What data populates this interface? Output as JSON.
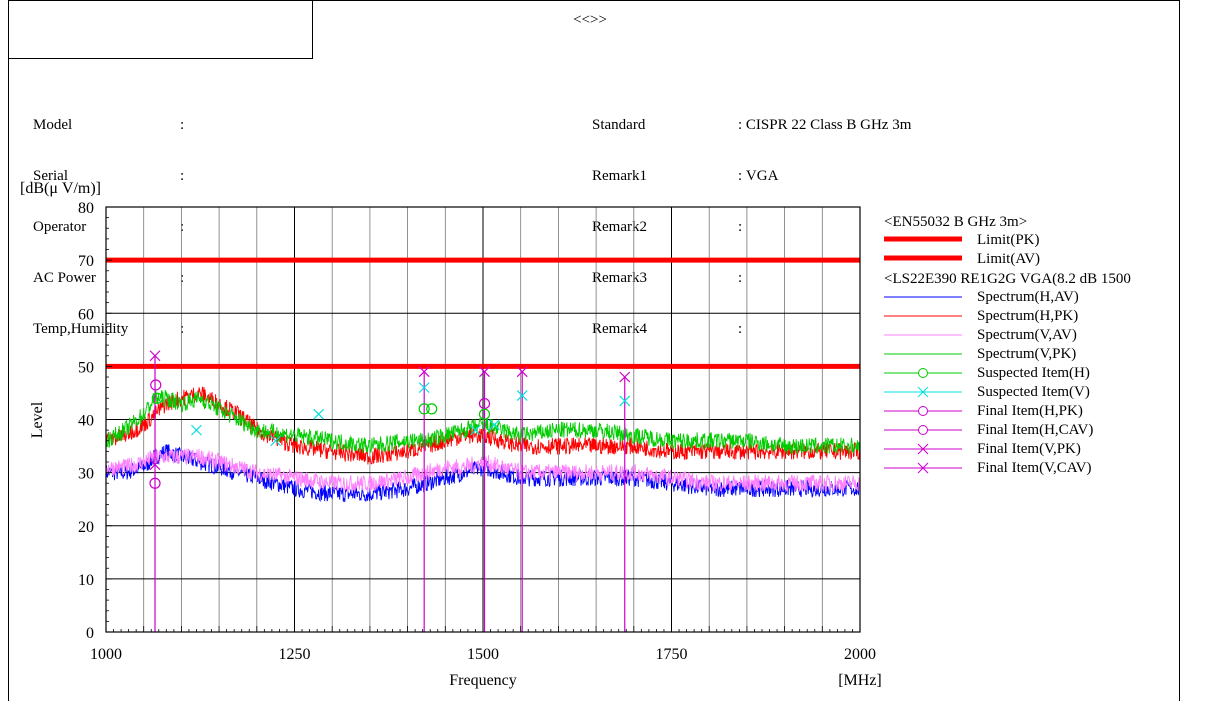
{
  "header": {
    "title": "<<>>"
  },
  "info_left": [
    {
      "key": "Model",
      "sep": ":",
      "value": ""
    },
    {
      "key": "Serial",
      "sep": ":",
      "value": ""
    },
    {
      "key": "Operator",
      "sep": ":",
      "value": ""
    },
    {
      "key": "AC Power",
      "sep": ":",
      "value": ""
    },
    {
      "key": "Temp,Humidity",
      "sep": ":",
      "value": ""
    }
  ],
  "info_right": [
    {
      "key": "Standard",
      "sep": ":",
      "value": "CISPR 22 Class B GHz 3m"
    },
    {
      "key": "Remark1",
      "sep": ":",
      "value": "VGA"
    },
    {
      "key": "Remark2",
      "sep": ":",
      "value": ""
    },
    {
      "key": "Remark3",
      "sep": ":",
      "value": ""
    },
    {
      "key": "Remark4",
      "sep": ":",
      "value": ""
    }
  ],
  "chart_data": {
    "type": "line",
    "xlabel": "Frequency",
    "xunit": "[MHz]",
    "ylabel": "Level",
    "yunit": "[dB(μ V/m)]",
    "xlim": [
      1000,
      2000
    ],
    "ylim": [
      0,
      80
    ],
    "xticks": [
      1000,
      1250,
      1500,
      1750,
      2000
    ],
    "yticks": [
      0,
      10,
      20,
      30,
      40,
      50,
      60,
      70,
      80
    ],
    "grid": true,
    "limits": [
      {
        "name": "Limit(PK)",
        "value": 70,
        "color": "#ff0000"
      },
      {
        "name": "Limit(AV)",
        "value": 50,
        "color": "#ff0000"
      }
    ],
    "legend_groups": [
      {
        "title": "<EN55032 B GHz 3m>",
        "entries": [
          {
            "name": "Limit(PK)",
            "color": "#ff0000",
            "style": "thick"
          },
          {
            "name": "Limit(AV)",
            "color": "#ff0000",
            "style": "thick"
          }
        ]
      },
      {
        "title": "<LS22E390 RE1G2G VGA(8.2 dB 1500",
        "entries": [
          {
            "name": "Spectrum(H,AV)",
            "color": "#0000ff",
            "style": "line"
          },
          {
            "name": "Spectrum(H,PK)",
            "color": "#ff0000",
            "style": "line"
          },
          {
            "name": "Spectrum(V,AV)",
            "color": "#ff80ff",
            "style": "line"
          },
          {
            "name": "Spectrum(V,PK)",
            "color": "#00cc00",
            "style": "line"
          },
          {
            "name": "Suspected Item(H)",
            "color": "#00cc00",
            "style": "circle"
          },
          {
            "name": "Suspected Item(V)",
            "color": "#00e0e0",
            "style": "cross"
          },
          {
            "name": "Final Item(H,PK)",
            "color": "#cc00cc",
            "style": "circle"
          },
          {
            "name": "Final Item(H,CAV)",
            "color": "#cc00cc",
            "style": "circle"
          },
          {
            "name": "Final Item(V,PK)",
            "color": "#cc00cc",
            "style": "cross"
          },
          {
            "name": "Final Item(V,CAV)",
            "color": "#cc00cc",
            "style": "cross"
          }
        ]
      }
    ],
    "series": [
      {
        "name": "Spectrum(H,AV)",
        "color": "#0000ff",
        "x": [
          1000,
          1025,
          1050,
          1065,
          1080,
          1100,
          1125,
          1150,
          1175,
          1200,
          1250,
          1300,
          1350,
          1400,
          1425,
          1450,
          1475,
          1500,
          1525,
          1550,
          1600,
          1650,
          1700,
          1750,
          1800,
          1850,
          1900,
          1950,
          2000
        ],
        "y": [
          30,
          30,
          31,
          33,
          34,
          33,
          32,
          31,
          30,
          29,
          27,
          26,
          26,
          27,
          28,
          29,
          30,
          31,
          30,
          29,
          29,
          29,
          29,
          28,
          27,
          27,
          27,
          27,
          27
        ]
      },
      {
        "name": "Spectrum(V,AV)",
        "color": "#ff80ff",
        "x": [
          1000,
          1025,
          1050,
          1065,
          1080,
          1100,
          1125,
          1150,
          1175,
          1200,
          1250,
          1300,
          1350,
          1400,
          1425,
          1450,
          1475,
          1500,
          1525,
          1550,
          1600,
          1650,
          1700,
          1750,
          1800,
          1850,
          1900,
          1950,
          2000
        ],
        "y": [
          31,
          31,
          32,
          33,
          33,
          33,
          33,
          32,
          31,
          30,
          29,
          28,
          28,
          29,
          30,
          31,
          31,
          32,
          31,
          30,
          30,
          30,
          30,
          29,
          28,
          28,
          28,
          28,
          28
        ]
      },
      {
        "name": "Spectrum(H,PK)",
        "color": "#ff0000",
        "x": [
          1000,
          1025,
          1050,
          1065,
          1080,
          1100,
          1125,
          1150,
          1175,
          1200,
          1250,
          1300,
          1350,
          1400,
          1425,
          1450,
          1475,
          1500,
          1525,
          1550,
          1600,
          1650,
          1700,
          1750,
          1800,
          1850,
          1900,
          1950,
          2000
        ],
        "y": [
          36,
          37,
          39,
          41,
          43,
          44,
          45,
          43,
          41,
          38,
          35,
          34,
          33,
          34,
          35,
          36,
          37,
          37,
          36,
          35,
          35,
          35,
          35,
          34,
          34,
          34,
          34,
          34,
          34
        ]
      },
      {
        "name": "Spectrum(V,PK)",
        "color": "#00cc00",
        "x": [
          1000,
          1025,
          1050,
          1065,
          1080,
          1100,
          1125,
          1150,
          1175,
          1200,
          1250,
          1300,
          1350,
          1400,
          1425,
          1450,
          1475,
          1500,
          1525,
          1550,
          1600,
          1650,
          1700,
          1750,
          1800,
          1850,
          1900,
          1950,
          2000
        ],
        "y": [
          36,
          38,
          41,
          44,
          44,
          43,
          44,
          42,
          40,
          38,
          37,
          36,
          35,
          36,
          36,
          37,
          38,
          39,
          38,
          37,
          38,
          38,
          37,
          36,
          36,
          36,
          35,
          35,
          35
        ]
      }
    ],
    "spikes": [
      {
        "x": 1065,
        "y": 52
      },
      {
        "x": 1422,
        "y": 49
      },
      {
        "x": 1502,
        "y": 49
      },
      {
        "x": 1552,
        "y": 49
      },
      {
        "x": 1688,
        "y": 48
      }
    ],
    "markers": [
      {
        "x": 1065,
        "y": 52,
        "type": "cross",
        "color": "#cc00cc"
      },
      {
        "x": 1066,
        "y": 46.5,
        "type": "circle",
        "color": "#cc00cc"
      },
      {
        "x": 1065,
        "y": 31.5,
        "type": "cross",
        "color": "#cc00cc"
      },
      {
        "x": 1065,
        "y": 28,
        "type": "circle",
        "color": "#cc00cc"
      },
      {
        "x": 1068,
        "y": 44,
        "type": "circle",
        "color": "#00cc00"
      },
      {
        "x": 1120,
        "y": 38,
        "type": "cross",
        "color": "#00e0e0"
      },
      {
        "x": 1225,
        "y": 36,
        "type": "cross",
        "color": "#00e0e0"
      },
      {
        "x": 1282,
        "y": 41,
        "type": "cross",
        "color": "#00e0e0"
      },
      {
        "x": 1422,
        "y": 49,
        "type": "cross",
        "color": "#cc00cc"
      },
      {
        "x": 1422,
        "y": 46,
        "type": "cross",
        "color": "#00e0e0"
      },
      {
        "x": 1422,
        "y": 42,
        "type": "circle",
        "color": "#00cc00"
      },
      {
        "x": 1432,
        "y": 42,
        "type": "circle",
        "color": "#00cc00"
      },
      {
        "x": 1490,
        "y": 38,
        "type": "cross",
        "color": "#00e0e0"
      },
      {
        "x": 1502,
        "y": 49,
        "type": "cross",
        "color": "#cc00cc"
      },
      {
        "x": 1502,
        "y": 43,
        "type": "circle",
        "color": "#cc00cc"
      },
      {
        "x": 1502,
        "y": 41,
        "type": "circle",
        "color": "#00cc00"
      },
      {
        "x": 1515,
        "y": 39,
        "type": "cross",
        "color": "#00e0e0"
      },
      {
        "x": 1552,
        "y": 49,
        "type": "cross",
        "color": "#cc00cc"
      },
      {
        "x": 1552,
        "y": 44.5,
        "type": "cross",
        "color": "#00e0e0"
      },
      {
        "x": 1688,
        "y": 48,
        "type": "cross",
        "color": "#cc00cc"
      },
      {
        "x": 1688,
        "y": 43.5,
        "type": "cross",
        "color": "#00e0e0"
      }
    ]
  }
}
